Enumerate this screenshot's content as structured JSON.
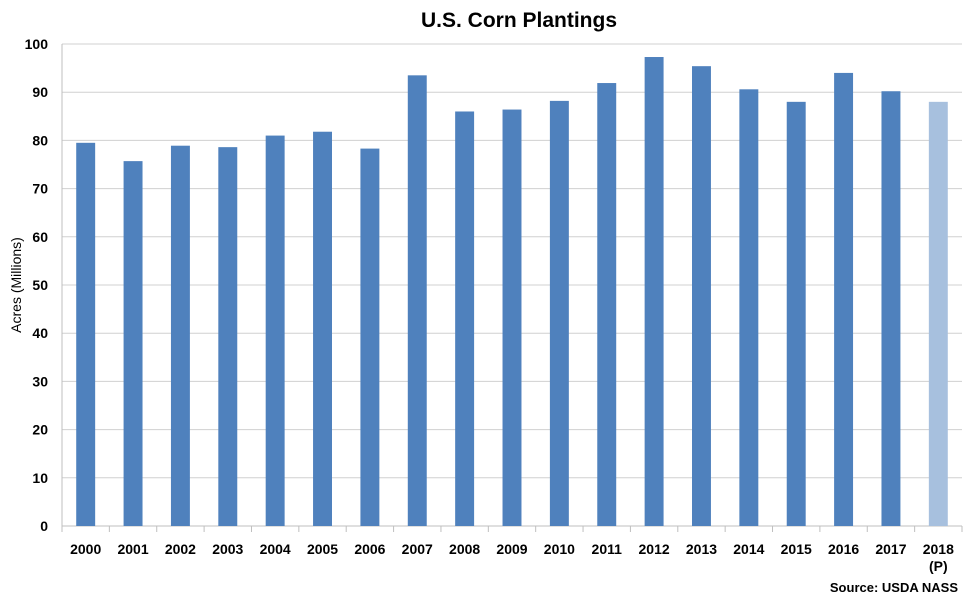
{
  "chart_data": {
    "type": "bar",
    "title": "U.S. Corn Plantings",
    "ylabel": "Acres (Millions)",
    "xlabel": "",
    "source": "Source: USDA NASS",
    "ylim": [
      0,
      100
    ],
    "yticks": [
      0,
      10,
      20,
      30,
      40,
      50,
      60,
      70,
      80,
      90,
      100
    ],
    "grid": true,
    "categories": [
      "2000",
      "2001",
      "2002",
      "2003",
      "2004",
      "2005",
      "2006",
      "2007",
      "2008",
      "2009",
      "2010",
      "2011",
      "2012",
      "2013",
      "2014",
      "2015",
      "2016",
      "2017",
      "2018\n(P)"
    ],
    "values": [
      79.5,
      75.7,
      78.9,
      78.6,
      81.0,
      81.8,
      78.3,
      93.5,
      86.0,
      86.4,
      88.2,
      91.9,
      97.3,
      95.4,
      90.6,
      88.0,
      94.0,
      90.2,
      88.0
    ],
    "colors": {
      "bar": "#4f81bd",
      "projected_bar": "#a7c0de"
    },
    "projected_index": 18
  }
}
